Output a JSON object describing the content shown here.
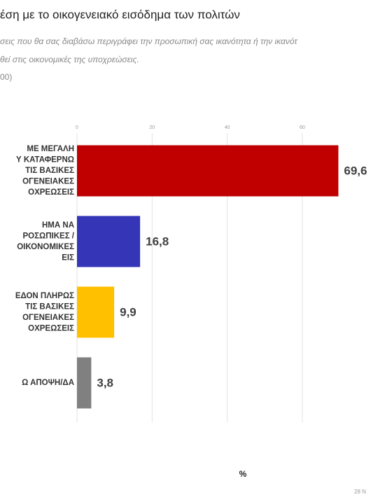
{
  "chart_data": {
    "type": "bar",
    "orientation": "horizontal",
    "title": "έση με το οικογενειακό εισόδημα των πολιτών",
    "subtitle": [
      "σεις που θα σας διαβάσω περιγράφει την προσωπική σας ικανότητα ή την ικανότ",
      "θεί στις οικονομικές της  υποχρεώσεις.",
      "00)"
    ],
    "categories": [
      [
        "ΜΕ ΜΕΓΑΛΗ",
        "Υ ΚΑΤΑΦΕΡΝΩ",
        "ΤΙΣ ΒΑΣΙΚΕΣ",
        "ΟΓΕΝΕΙΑΚΕΣ",
        "ΟΧΡΕΩΣΕΙΣ"
      ],
      [
        "ΗΜΑ ΝΑ",
        "ΡΟΣΩΠΙΚΕΣ /",
        "ΟΙΚΟΝΟΜΙΚΕΣ",
        "ΕΙΣ"
      ],
      [
        "ΕΔΟΝ ΠΛΗΡΩΣ",
        "ΤΙΣ ΒΑΣΙΚΕΣ",
        "ΟΓΕΝΕΙΑΚΕΣ",
        "ΟΧΡΕΩΣΕΙΣ"
      ],
      [
        "Ω ΑΠΟΨΗ/ΔΑ"
      ]
    ],
    "values": [
      69.6,
      16.8,
      9.9,
      3.8
    ],
    "value_labels": [
      "69,6",
      "16,8",
      "9,9",
      "3,8"
    ],
    "colors": [
      "#c00000",
      "#3535b8",
      "#ffc000",
      "#808080"
    ],
    "xlim": [
      0,
      80
    ],
    "xticks": [
      0,
      20,
      40,
      60
    ],
    "grid": true,
    "xlabel": "%",
    "footer": "28 Ν"
  }
}
